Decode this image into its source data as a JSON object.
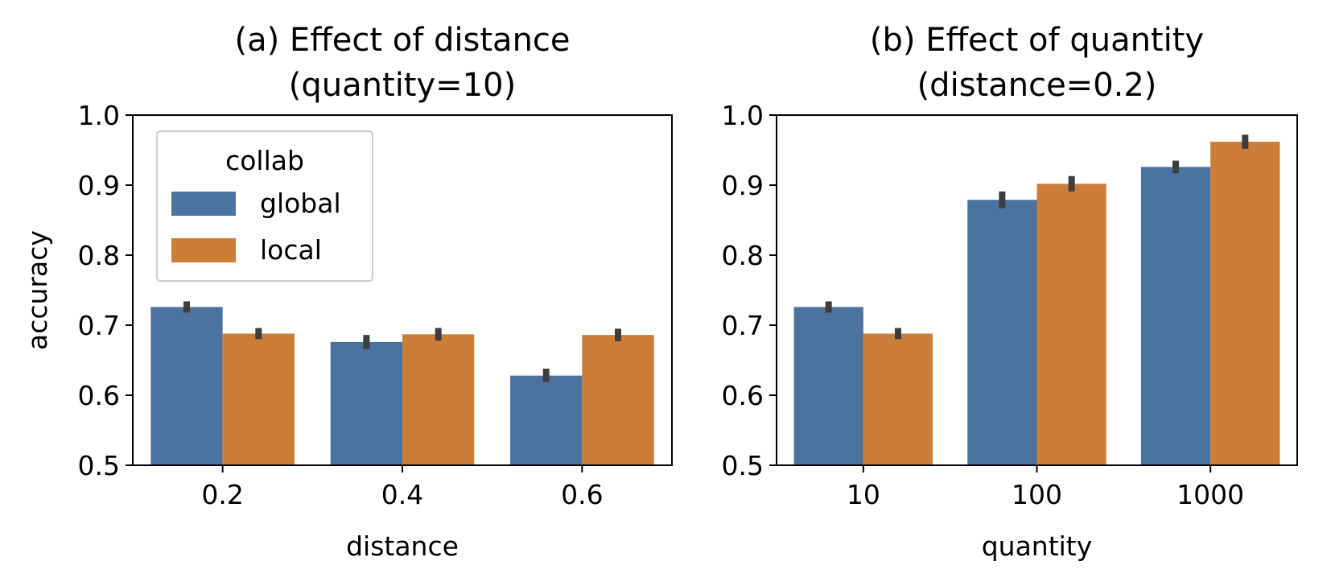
{
  "colors": {
    "global": "#4c72a0",
    "local": "#cc7e38",
    "errorbar": "#3d3d3d"
  },
  "chart_data": [
    {
      "type": "bar",
      "title": "(a) Effect of distance\n(quantity=10)",
      "xlabel": "distance",
      "ylabel": "accuracy",
      "ylim": [
        0.5,
        1.0
      ],
      "yticks": [
        "0.5",
        "0.6",
        "0.7",
        "0.8",
        "0.9",
        "1.0"
      ],
      "categories": [
        "0.2",
        "0.4",
        "0.6"
      ],
      "legend": {
        "title": "collab",
        "placement": "upper-left"
      },
      "grid": false,
      "series": [
        {
          "name": "global",
          "values": [
            0.726,
            0.676,
            0.628
          ],
          "error": [
            [
              0.718,
              0.734
            ],
            [
              0.666,
              0.686
            ],
            [
              0.619,
              0.638
            ]
          ]
        },
        {
          "name": "local",
          "values": [
            0.688,
            0.687,
            0.686
          ],
          "error": [
            [
              0.68,
              0.696
            ],
            [
              0.678,
              0.696
            ],
            [
              0.677,
              0.695
            ]
          ]
        }
      ]
    },
    {
      "type": "bar",
      "title": "(b) Effect of quantity\n(distance=0.2)",
      "xlabel": "quantity",
      "ylabel": "",
      "ylim": [
        0.5,
        1.0
      ],
      "yticks": [
        "0.5",
        "0.6",
        "0.7",
        "0.8",
        "0.9",
        "1.0"
      ],
      "categories": [
        "10",
        "100",
        "1000"
      ],
      "grid": false,
      "series": [
        {
          "name": "global",
          "values": [
            0.726,
            0.879,
            0.926
          ],
          "error": [
            [
              0.718,
              0.734
            ],
            [
              0.867,
              0.891
            ],
            [
              0.917,
              0.935
            ]
          ]
        },
        {
          "name": "local",
          "values": [
            0.688,
            0.902,
            0.962
          ],
          "error": [
            [
              0.68,
              0.696
            ],
            [
              0.891,
              0.913
            ],
            [
              0.952,
              0.972
            ]
          ]
        }
      ]
    }
  ]
}
